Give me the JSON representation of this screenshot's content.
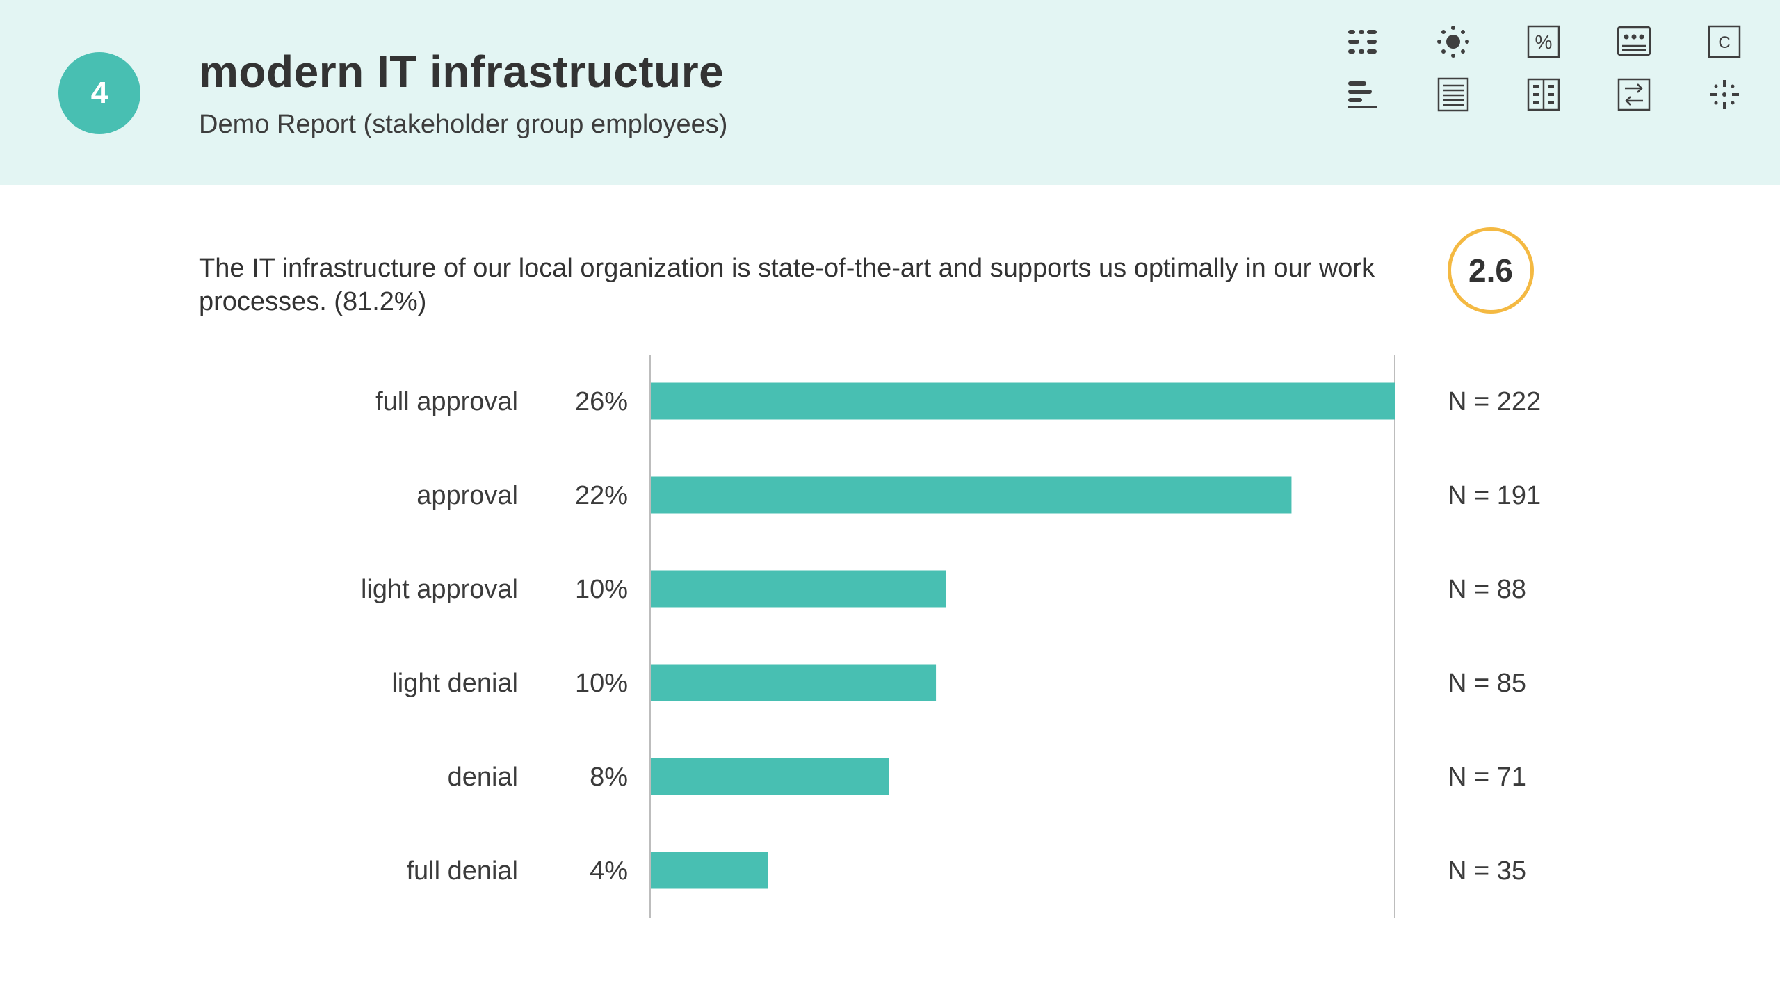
{
  "header": {
    "number": "4",
    "title": "modern IT infrastructure",
    "subtitle": "Demo Report (stakeholder group employees)"
  },
  "toolbar": {
    "icons": [
      "list-grid-icon",
      "settings-gear-icon",
      "percent-icon",
      "dots-panel-icon",
      "c-box-icon",
      "bar-align-icon",
      "document-lines-icon",
      "table-grid-icon",
      "swap-arrows-icon",
      "sparkle-icon"
    ],
    "percent_glyph": "%",
    "c_glyph": "C"
  },
  "question": {
    "text": "The IT infrastructure of our local organization is state-of-the-art and supports us optimally in our work processes. (81.2%)",
    "score": "2.6"
  },
  "colors": {
    "bar": "#48bfb2",
    "header_bg": "#e3f5f3",
    "score_ring": "#f4b942"
  },
  "chart_data": {
    "type": "bar",
    "orientation": "horizontal",
    "categories": [
      "full approval",
      "approval",
      "light approval",
      "light denial",
      "denial",
      "full denial"
    ],
    "values": [
      222,
      191,
      88,
      85,
      71,
      35
    ],
    "percent_labels": [
      "26%",
      "22%",
      "10%",
      "10%",
      "8%",
      "4%"
    ],
    "n_labels": [
      "N = 222",
      "N = 191",
      "N = 88",
      "N = 85",
      "N = 71",
      "N = 35"
    ],
    "xlim": [
      0,
      222
    ],
    "title": "",
    "xlabel": "",
    "ylabel": ""
  }
}
